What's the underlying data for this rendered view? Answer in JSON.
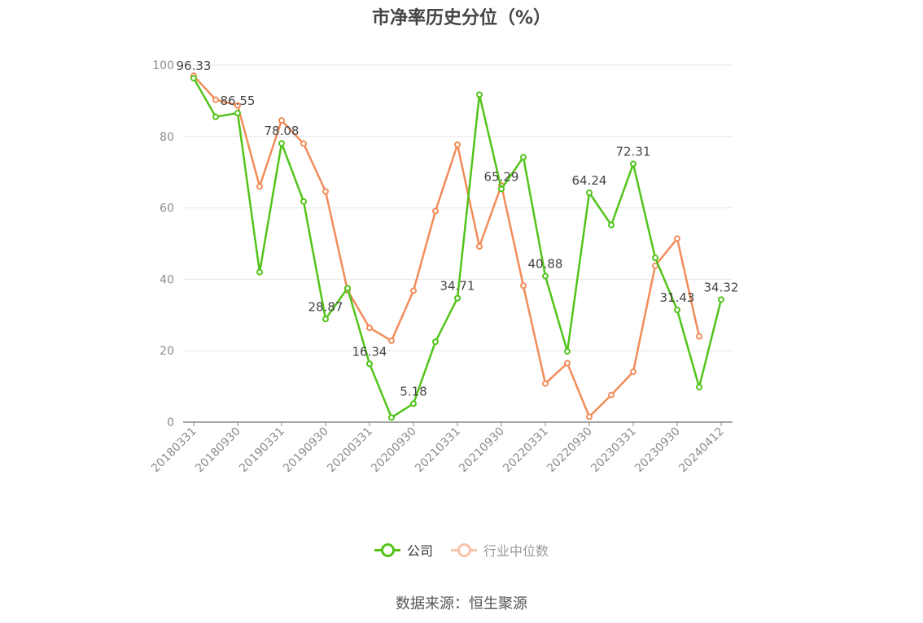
{
  "chart_data": {
    "type": "line",
    "title": "市净率历史分位（%）",
    "ylim": [
      0,
      100
    ],
    "yticks": [
      "0",
      "20",
      "40",
      "60",
      "80",
      "100"
    ],
    "grid": true,
    "legend_position": "bottom-center",
    "x": [
      "20180331",
      "20180630",
      "20180930",
      "20181231",
      "20190331",
      "20190630",
      "20190930",
      "20191231",
      "20200331",
      "20200630",
      "20200930",
      "20201231",
      "20210331",
      "20210630",
      "20210930",
      "20211231",
      "20220331",
      "20220630",
      "20220930",
      "20221231",
      "20230331",
      "20230630",
      "20230930",
      "20231231",
      "20240412"
    ],
    "xtick_labels": [
      "20180331",
      "20180930",
      "20190331",
      "20190930",
      "20200331",
      "20200930",
      "20210331",
      "20210930",
      "20220331",
      "20220930",
      "20230331",
      "20230930",
      "20240412"
    ],
    "series": [
      {
        "name": "公司",
        "color": "#52c41a",
        "values": [
          96.33,
          85.5,
          86.55,
          42.0,
          78.08,
          61.8,
          28.87,
          37.5,
          16.34,
          1.3,
          5.18,
          22.5,
          34.71,
          91.7,
          65.29,
          74.2,
          40.88,
          19.8,
          64.24,
          55.2,
          72.31,
          46.0,
          31.43,
          9.8,
          34.32
        ],
        "labels": {
          "0": "96.33",
          "2": "86.55",
          "4": "78.08",
          "6": "28.87",
          "8": "16.34",
          "10": "5.18",
          "12": "34.71",
          "14": "65.29",
          "16": "40.88",
          "18": "64.24",
          "20": "72.31",
          "22": "31.43",
          "24": "34.32"
        }
      },
      {
        "name": "行业中位数",
        "color": "#f28c5a",
        "values": [
          97.0,
          90.3,
          88.7,
          66.0,
          84.5,
          78.0,
          64.6,
          36.9,
          26.4,
          22.8,
          36.8,
          59.1,
          77.7,
          49.2,
          66.3,
          38.2,
          10.8,
          16.5,
          1.5,
          7.6,
          14.1,
          43.8,
          51.4,
          24.0,
          null
        ]
      }
    ]
  },
  "legend": [
    {
      "label": "公司",
      "color": "#52c41a",
      "active": true
    },
    {
      "label": "行业中位数",
      "color": "#f9c2ab",
      "active": false
    }
  ],
  "source": "数据来源：恒生聚源"
}
